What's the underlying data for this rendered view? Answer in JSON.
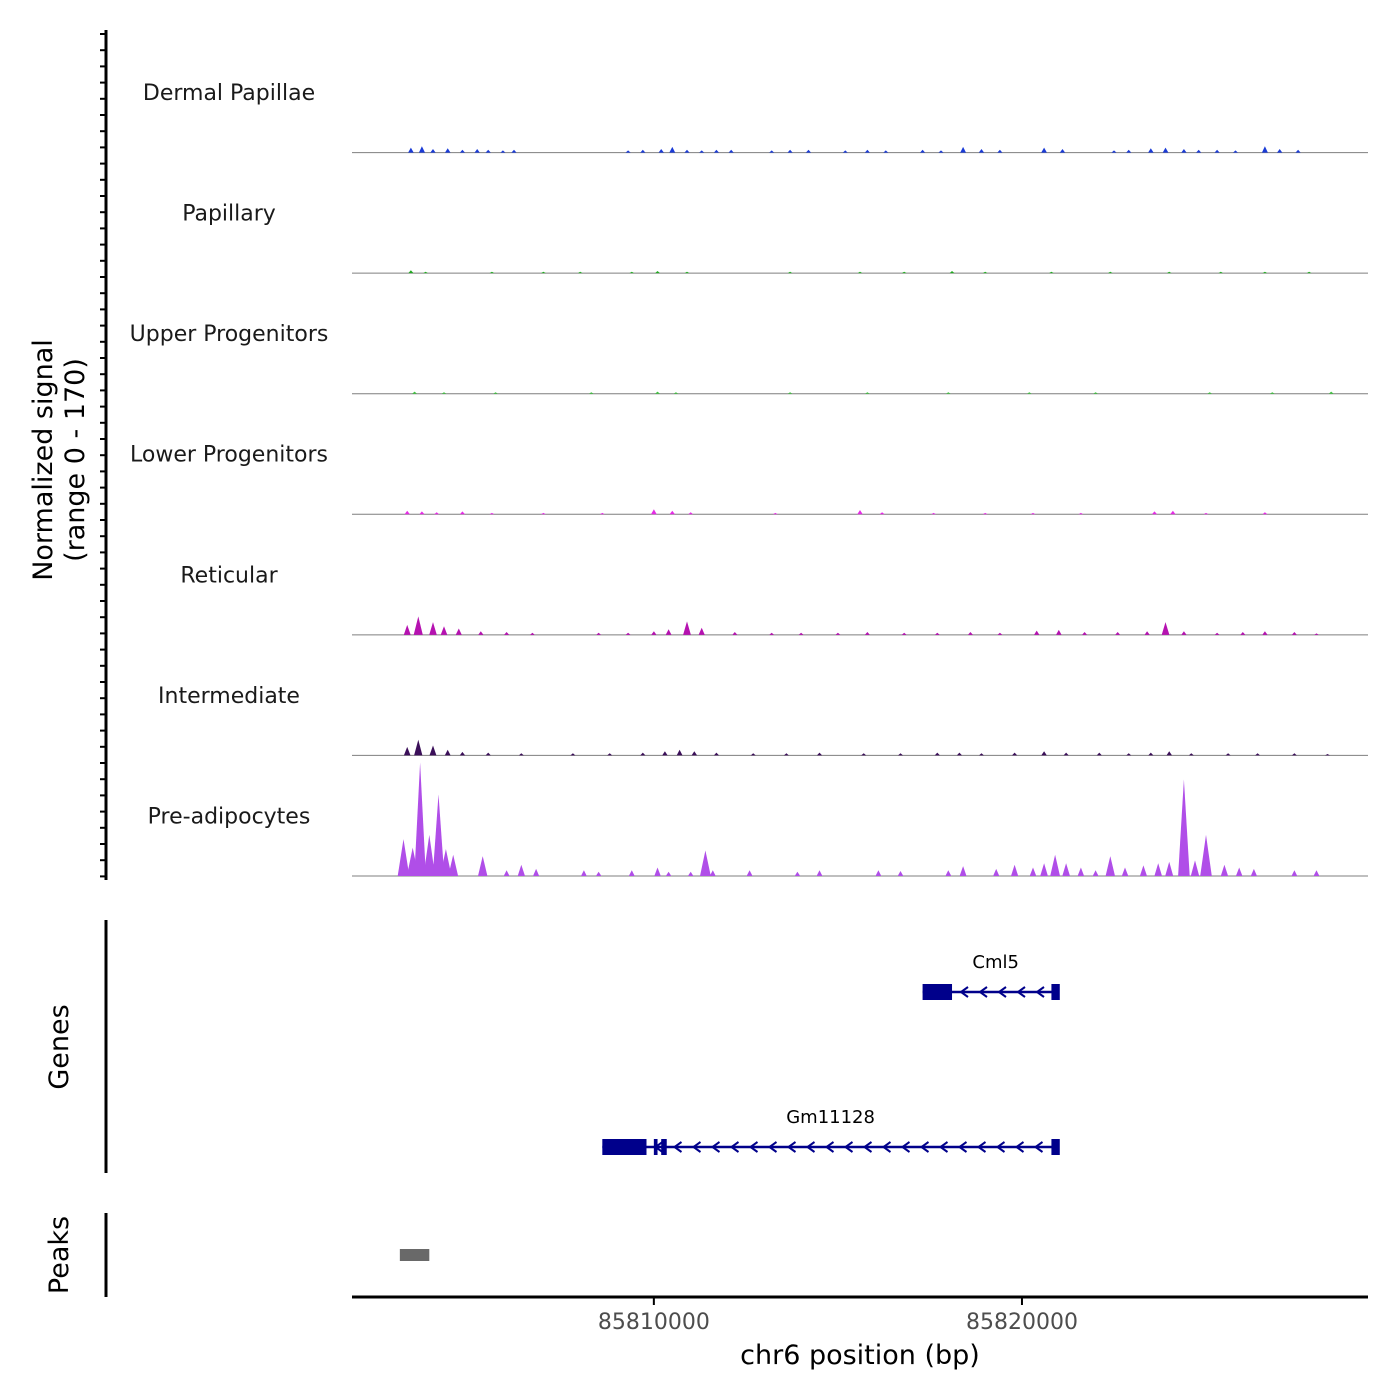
{
  "chart_data": {
    "type": "area",
    "title": "",
    "signal_axis": {
      "label_line1": "Normalized signal",
      "label_line2": "(range 0 - 170)",
      "range": [
        0,
        170
      ]
    },
    "x_axis": {
      "label": "chr6 position (bp)",
      "range": [
        85801800,
        85829400
      ],
      "ticks": [
        {
          "value": 85810000,
          "label": "85810000"
        },
        {
          "value": 85820000,
          "label": "85820000"
        }
      ]
    },
    "tracks": [
      {
        "name": "Dermal Papillae",
        "color": "#1a3bd6",
        "peaks": [
          [
            85803400,
            7
          ],
          [
            85803700,
            9
          ],
          [
            85804000,
            5
          ],
          [
            85804400,
            6
          ],
          [
            85804800,
            4
          ],
          [
            85805200,
            5
          ],
          [
            85805500,
            4
          ],
          [
            85805900,
            3
          ],
          [
            85806200,
            4
          ],
          [
            85809300,
            3
          ],
          [
            85809700,
            4
          ],
          [
            85810200,
            5
          ],
          [
            85810500,
            8
          ],
          [
            85810900,
            4
          ],
          [
            85811300,
            3
          ],
          [
            85811700,
            4
          ],
          [
            85812100,
            4
          ],
          [
            85813200,
            3
          ],
          [
            85813700,
            4
          ],
          [
            85814200,
            4
          ],
          [
            85815200,
            3
          ],
          [
            85815800,
            4
          ],
          [
            85816300,
            3
          ],
          [
            85817300,
            4
          ],
          [
            85817800,
            3
          ],
          [
            85818400,
            8
          ],
          [
            85818900,
            5
          ],
          [
            85819400,
            4
          ],
          [
            85820600,
            7
          ],
          [
            85821100,
            5
          ],
          [
            85822500,
            3
          ],
          [
            85822900,
            4
          ],
          [
            85823500,
            6
          ],
          [
            85823900,
            7
          ],
          [
            85824400,
            5
          ],
          [
            85824800,
            4
          ],
          [
            85825300,
            4
          ],
          [
            85825800,
            3
          ],
          [
            85826600,
            9
          ],
          [
            85827000,
            5
          ],
          [
            85827500,
            4
          ]
        ]
      },
      {
        "name": "Papillary",
        "color": "#21a821",
        "peaks": [
          [
            85803400,
            4
          ],
          [
            85803800,
            2
          ],
          [
            85805600,
            2
          ],
          [
            85807000,
            2
          ],
          [
            85808000,
            2
          ],
          [
            85809400,
            2
          ],
          [
            85810100,
            3
          ],
          [
            85810900,
            2
          ],
          [
            85813700,
            2
          ],
          [
            85815600,
            2
          ],
          [
            85816800,
            2
          ],
          [
            85818100,
            3
          ],
          [
            85819000,
            2
          ],
          [
            85820800,
            2
          ],
          [
            85822400,
            2
          ],
          [
            85824000,
            2
          ],
          [
            85825400,
            2
          ],
          [
            85826600,
            2
          ],
          [
            85827800,
            2
          ]
        ]
      },
      {
        "name": "Upper Progenitors",
        "color": "#3ec43e",
        "peaks": [
          [
            85803500,
            3
          ],
          [
            85804300,
            2
          ],
          [
            85805700,
            2
          ],
          [
            85808300,
            2
          ],
          [
            85810100,
            3
          ],
          [
            85810600,
            2
          ],
          [
            85813700,
            2
          ],
          [
            85815800,
            2
          ],
          [
            85818000,
            2
          ],
          [
            85820200,
            2
          ],
          [
            85822000,
            2
          ],
          [
            85825100,
            2
          ],
          [
            85826800,
            2
          ],
          [
            85828400,
            3
          ]
        ]
      },
      {
        "name": "Lower Progenitors",
        "color": "#e42ce4",
        "peaks": [
          [
            85803300,
            5
          ],
          [
            85803700,
            4
          ],
          [
            85804100,
            3
          ],
          [
            85804800,
            4
          ],
          [
            85805600,
            2
          ],
          [
            85807000,
            2
          ],
          [
            85808600,
            2
          ],
          [
            85810000,
            7
          ],
          [
            85810500,
            5
          ],
          [
            85811000,
            3
          ],
          [
            85813300,
            2
          ],
          [
            85815600,
            6
          ],
          [
            85816200,
            3
          ],
          [
            85817600,
            2
          ],
          [
            85819000,
            2
          ],
          [
            85820300,
            2
          ],
          [
            85821600,
            2
          ],
          [
            85823600,
            4
          ],
          [
            85824100,
            5
          ],
          [
            85825000,
            2
          ],
          [
            85826600,
            3
          ]
        ]
      },
      {
        "name": "Reticular",
        "color": "#b512b0",
        "peaks": [
          [
            85803300,
            14
          ],
          [
            85803600,
            26
          ],
          [
            85804000,
            18
          ],
          [
            85804300,
            12
          ],
          [
            85804700,
            9
          ],
          [
            85805300,
            5
          ],
          [
            85806000,
            4
          ],
          [
            85806700,
            3
          ],
          [
            85808500,
            3
          ],
          [
            85809300,
            3
          ],
          [
            85810000,
            5
          ],
          [
            85810400,
            8
          ],
          [
            85810900,
            19
          ],
          [
            85811300,
            10
          ],
          [
            85812200,
            4
          ],
          [
            85813200,
            3
          ],
          [
            85814000,
            3
          ],
          [
            85815000,
            3
          ],
          [
            85815800,
            4
          ],
          [
            85816800,
            3
          ],
          [
            85817700,
            3
          ],
          [
            85818600,
            4
          ],
          [
            85819400,
            3
          ],
          [
            85820400,
            6
          ],
          [
            85821000,
            7
          ],
          [
            85821700,
            4
          ],
          [
            85822600,
            4
          ],
          [
            85823400,
            5
          ],
          [
            85823900,
            18
          ],
          [
            85824400,
            5
          ],
          [
            85825300,
            3
          ],
          [
            85826000,
            4
          ],
          [
            85826600,
            5
          ],
          [
            85827400,
            4
          ],
          [
            85828000,
            2
          ]
        ]
      },
      {
        "name": "Intermediate",
        "color": "#3b0f59",
        "peaks": [
          [
            85803300,
            12
          ],
          [
            85803600,
            22
          ],
          [
            85804000,
            14
          ],
          [
            85804400,
            8
          ],
          [
            85804800,
            5
          ],
          [
            85805500,
            4
          ],
          [
            85806400,
            3
          ],
          [
            85807800,
            3
          ],
          [
            85808800,
            3
          ],
          [
            85809700,
            4
          ],
          [
            85810300,
            6
          ],
          [
            85810700,
            8
          ],
          [
            85811100,
            6
          ],
          [
            85811700,
            4
          ],
          [
            85812700,
            3
          ],
          [
            85813600,
            3
          ],
          [
            85814500,
            4
          ],
          [
            85815700,
            3
          ],
          [
            85816700,
            3
          ],
          [
            85817700,
            4
          ],
          [
            85818300,
            4
          ],
          [
            85818900,
            3
          ],
          [
            85819800,
            4
          ],
          [
            85820600,
            6
          ],
          [
            85821200,
            4
          ],
          [
            85822100,
            4
          ],
          [
            85822900,
            3
          ],
          [
            85823500,
            4
          ],
          [
            85824000,
            6
          ],
          [
            85824600,
            3
          ],
          [
            85825600,
            3
          ],
          [
            85826400,
            3
          ],
          [
            85827400,
            3
          ],
          [
            85828300,
            2
          ]
        ]
      },
      {
        "name": "Pre-adipocytes",
        "color": "#b04ee8",
        "peaks": [
          [
            85803200,
            52
          ],
          [
            85803450,
            40
          ],
          [
            85803650,
            160
          ],
          [
            85803900,
            58
          ],
          [
            85804150,
            115
          ],
          [
            85804350,
            38
          ],
          [
            85804550,
            30
          ],
          [
            85805350,
            28
          ],
          [
            85806000,
            8
          ],
          [
            85806400,
            16
          ],
          [
            85806800,
            10
          ],
          [
            85808100,
            8
          ],
          [
            85808500,
            6
          ],
          [
            85809400,
            8
          ],
          [
            85810100,
            12
          ],
          [
            85810400,
            6
          ],
          [
            85811000,
            6
          ],
          [
            85811400,
            36
          ],
          [
            85811600,
            8
          ],
          [
            85812600,
            8
          ],
          [
            85813900,
            6
          ],
          [
            85814500,
            8
          ],
          [
            85816100,
            8
          ],
          [
            85816700,
            7
          ],
          [
            85818000,
            8
          ],
          [
            85818400,
            14
          ],
          [
            85819300,
            10
          ],
          [
            85819800,
            16
          ],
          [
            85820300,
            12
          ],
          [
            85820600,
            18
          ],
          [
            85820900,
            30
          ],
          [
            85821200,
            18
          ],
          [
            85821600,
            12
          ],
          [
            85822000,
            8
          ],
          [
            85822400,
            28
          ],
          [
            85822800,
            12
          ],
          [
            85823300,
            15
          ],
          [
            85823700,
            18
          ],
          [
            85824000,
            20
          ],
          [
            85824400,
            136
          ],
          [
            85824700,
            22
          ],
          [
            85825000,
            58
          ],
          [
            85825500,
            16
          ],
          [
            85825900,
            12
          ],
          [
            85826300,
            10
          ],
          [
            85827400,
            8
          ],
          [
            85828000,
            8
          ]
        ]
      }
    ],
    "genes": [
      {
        "name": "Cml5",
        "strand": "-",
        "start": 85817300,
        "end": 85821000,
        "exons": [
          [
            85817300,
            85818100
          ],
          [
            85820800,
            85821000
          ]
        ]
      },
      {
        "name": "Gm11128",
        "strand": "-",
        "start": 85808600,
        "end": 85821000,
        "exons": [
          [
            85808600,
            85809800
          ],
          [
            85810000,
            85810100
          ],
          [
            85810200,
            85810350
          ],
          [
            85820800,
            85821000
          ]
        ]
      }
    ],
    "genes_track_label": "Genes",
    "peaks_track": {
      "label": "Peaks",
      "regions": [
        [
          85803100,
          85803900
        ]
      ],
      "color": "#696969"
    }
  }
}
